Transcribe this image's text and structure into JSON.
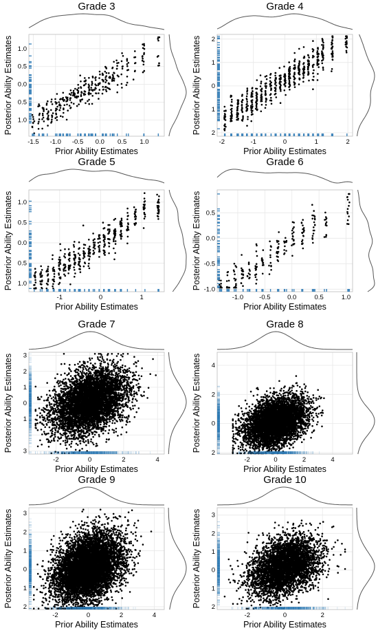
{
  "figure": {
    "colors": {
      "points": "#000000",
      "rug": "#2f7ab5",
      "density": "#555555",
      "grid": "#e8e8e8",
      "frame": "#bdbdbd"
    }
  },
  "chart_data": [
    {
      "type": "scatter",
      "title": "Grade 3",
      "xlabel": "Prior Ability Estimates",
      "ylabel": "Posterior Ability Estimates",
      "xlim": [
        -1.6,
        1.45
      ],
      "ylim": [
        -1.45,
        1.4
      ],
      "xticks": [
        -1.5,
        -1.0,
        -0.5,
        0.0,
        0.5,
        1.0
      ],
      "xtick_labels": [
        "-1.5",
        "-1.0",
        "-0.5",
        "0.0",
        "0.5",
        "1.0"
      ],
      "yticks": [
        -1.0,
        -0.5,
        0.0,
        0.5,
        1.0
      ],
      "ytick_labels": [
        "1.0",
        "0.5",
        "0.0",
        "0.5",
        "1.0"
      ],
      "x_columns": [
        -1.5,
        -1.38,
        -1.28,
        -1.18,
        -1.08,
        -0.98,
        -0.9,
        -0.82,
        -0.74,
        -0.66,
        -0.58,
        -0.5,
        -0.42,
        -0.34,
        -0.26,
        -0.18,
        -0.1,
        -0.02,
        0.06,
        0.14,
        0.22,
        0.3,
        0.4,
        0.5,
        0.62,
        0.78,
        0.98,
        1.32
      ],
      "x_range": [
        -1.55,
        1.32
      ],
      "trend": {
        "intercept": 0.06,
        "slope": 0.72
      },
      "spread": 0.22,
      "n_points": 340,
      "rug_density": "sparse",
      "grid": true
    },
    {
      "type": "scatter",
      "title": "Grade 4",
      "xlabel": "Prior Ability Estimates",
      "ylabel": "Posterior Ability Estimates",
      "xlim": [
        -2.15,
        2.15
      ],
      "ylim": [
        -2.15,
        2.2
      ],
      "xticks": [
        -2,
        -1,
        0,
        1,
        2
      ],
      "xtick_labels": [
        "-2",
        "-1",
        "0",
        "1",
        "2"
      ],
      "yticks": [
        -2,
        -1,
        0,
        1,
        2
      ],
      "ytick_labels": [
        "2",
        "1",
        "0",
        "1",
        "2"
      ],
      "x_columns": [
        -1.9,
        -1.7,
        -1.5,
        -1.35,
        -1.2,
        -1.05,
        -0.9,
        -0.75,
        -0.6,
        -0.45,
        -0.3,
        -0.15,
        0.0,
        0.15,
        0.3,
        0.45,
        0.6,
        0.75,
        0.9,
        1.05,
        1.2,
        1.5,
        1.95
      ],
      "x_range": [
        -2.0,
        2.0
      ],
      "trend": {
        "intercept": 0.25,
        "slope": 0.85
      },
      "spread": 0.3,
      "n_points": 600,
      "rug_density": "medium",
      "grid": true
    },
    {
      "type": "scatter",
      "title": "Grade 5",
      "xlabel": "Prior Ability Estimates",
      "ylabel": "Posterior Ability Estimates",
      "xlim": [
        -1.75,
        1.55
      ],
      "ylim": [
        -1.2,
        1.3
      ],
      "xticks": [
        -1,
        0,
        1
      ],
      "xtick_labels": [
        "-1",
        "0",
        "1"
      ],
      "yticks": [
        -1.0,
        -0.5,
        0.0,
        0.5,
        1.0
      ],
      "ytick_labels": [
        "1.0",
        "0.5",
        "0.0",
        "0.5",
        "1.0"
      ],
      "x_columns": [
        -1.6,
        -1.45,
        -1.3,
        -1.15,
        -1.0,
        -0.88,
        -0.76,
        -0.64,
        -0.52,
        -0.4,
        -0.28,
        -0.16,
        -0.04,
        0.08,
        0.2,
        0.34,
        0.5,
        0.66,
        0.84,
        1.06,
        1.4
      ],
      "x_range": [
        -1.65,
        1.4
      ],
      "trend": {
        "intercept": 0.0,
        "slope": 0.65
      },
      "spread": 0.2,
      "n_points": 420,
      "rug_density": "sparse",
      "grid": true
    },
    {
      "type": "scatter",
      "title": "Grade 6",
      "xlabel": "Prior Ability Estimates",
      "ylabel": "Posterior Ability Estimates",
      "xlim": [
        -1.38,
        1.12
      ],
      "ylim": [
        -1.05,
        0.95
      ],
      "xticks": [
        -1.0,
        -0.5,
        0.0,
        0.5,
        1.0
      ],
      "xtick_labels": [
        "-1.0",
        "-0.5",
        "0.0",
        "0.5",
        "1.0"
      ],
      "yticks": [
        -1.0,
        -0.5,
        0.0,
        0.5
      ],
      "ytick_labels": [
        "-1.0",
        "-0.5",
        "0.0",
        "0.5"
      ],
      "x_columns": [
        -1.32,
        -1.18,
        -1.05,
        -0.92,
        -0.8,
        -0.66,
        -0.54,
        -0.4,
        -0.26,
        -0.12,
        0.02,
        0.2,
        0.4,
        0.62,
        1.04
      ],
      "x_range": [
        -1.32,
        1.05
      ],
      "trend": {
        "intercept": -0.05,
        "slope": 0.72
      },
      "spread": 0.18,
      "n_points": 230,
      "rug_density": "sparse",
      "grid": true
    },
    {
      "type": "scatter",
      "title": "Grade 7",
      "xlabel": "Prior Ability Estimates",
      "ylabel": "Posterior Ability Estimates",
      "xlim": [
        -3.6,
        4.4
      ],
      "ylim": [
        -3.2,
        3.2
      ],
      "xticks": [
        -2,
        0,
        2,
        4
      ],
      "xtick_labels": [
        "-2",
        "0",
        "2",
        "4"
      ],
      "yticks": [
        -3,
        -2,
        -1,
        0,
        1,
        2,
        3
      ],
      "ytick_labels": [
        "3",
        "",
        "1",
        "0",
        "1",
        "2",
        "3"
      ],
      "x_range": [
        -3.2,
        3.9
      ],
      "trend": {
        "intercept": 0.1,
        "slope": 0.35
      },
      "spread_x": 1.1,
      "spread_y": 0.95,
      "n_points": 5200,
      "rug_density": "dense",
      "grid": true
    },
    {
      "type": "scatter",
      "title": "Grade 8",
      "xlabel": "Prior Ability Estimates",
      "ylabel": "Posterior Ability Estimates",
      "xlim": [
        -4.1,
        5.4
      ],
      "ylim": [
        -2.1,
        4.9
      ],
      "xticks": [
        -2,
        0,
        2,
        4
      ],
      "xtick_labels": [
        "-2",
        "0",
        "2",
        "4"
      ],
      "yticks": [
        -2,
        0,
        2,
        4
      ],
      "ytick_labels": [
        "2",
        "0",
        "2",
        "4"
      ],
      "x_range": [
        -3.0,
        4.8
      ],
      "trend": {
        "intercept": 0.1,
        "slope": 0.3
      },
      "spread_x": 1.05,
      "spread_y": 0.8,
      "n_points": 5200,
      "rug_density": "dense",
      "grid": true
    },
    {
      "type": "scatter",
      "title": "Grade 9",
      "xlabel": "Prior Ability Estimates",
      "ylabel": "Posterior Ability Estimates",
      "xlim": [
        -3.6,
        4.6
      ],
      "ylim": [
        -2.15,
        3.3
      ],
      "xticks": [
        -2,
        0,
        2,
        4
      ],
      "xtick_labels": [
        "-2",
        "0",
        "2",
        "4"
      ],
      "yticks": [
        -2,
        -1,
        0,
        1,
        2,
        3
      ],
      "ytick_labels": [
        "2",
        "1",
        "0",
        "1",
        "2",
        "3"
      ],
      "x_range": [
        -3.3,
        4.0
      ],
      "trend": {
        "intercept": 0.1,
        "slope": 0.3
      },
      "spread_x": 1.0,
      "spread_y": 0.85,
      "n_points": 7000,
      "rug_density": "dense",
      "grid": true
    },
    {
      "type": "scatter",
      "title": "Grade 10",
      "xlabel": "Prior Ability Estimates",
      "ylabel": "Posterior Ability Estimates",
      "xlim": [
        -3.6,
        3.6
      ],
      "ylim": [
        -2.15,
        3.4
      ],
      "xticks": [
        -2,
        0,
        2
      ],
      "xtick_labels": [
        "-2",
        "0",
        "2"
      ],
      "yticks": [
        -2,
        -1,
        0,
        1,
        2,
        3
      ],
      "ytick_labels": [
        "2",
        "1",
        "0",
        "1",
        "2",
        "3"
      ],
      "x_range": [
        -3.2,
        3.2
      ],
      "trend": {
        "intercept": 0.2,
        "slope": 0.3
      },
      "spread_x": 0.9,
      "spread_y": 0.75,
      "n_points": 4000,
      "rug_density": "dense",
      "grid": true
    }
  ]
}
